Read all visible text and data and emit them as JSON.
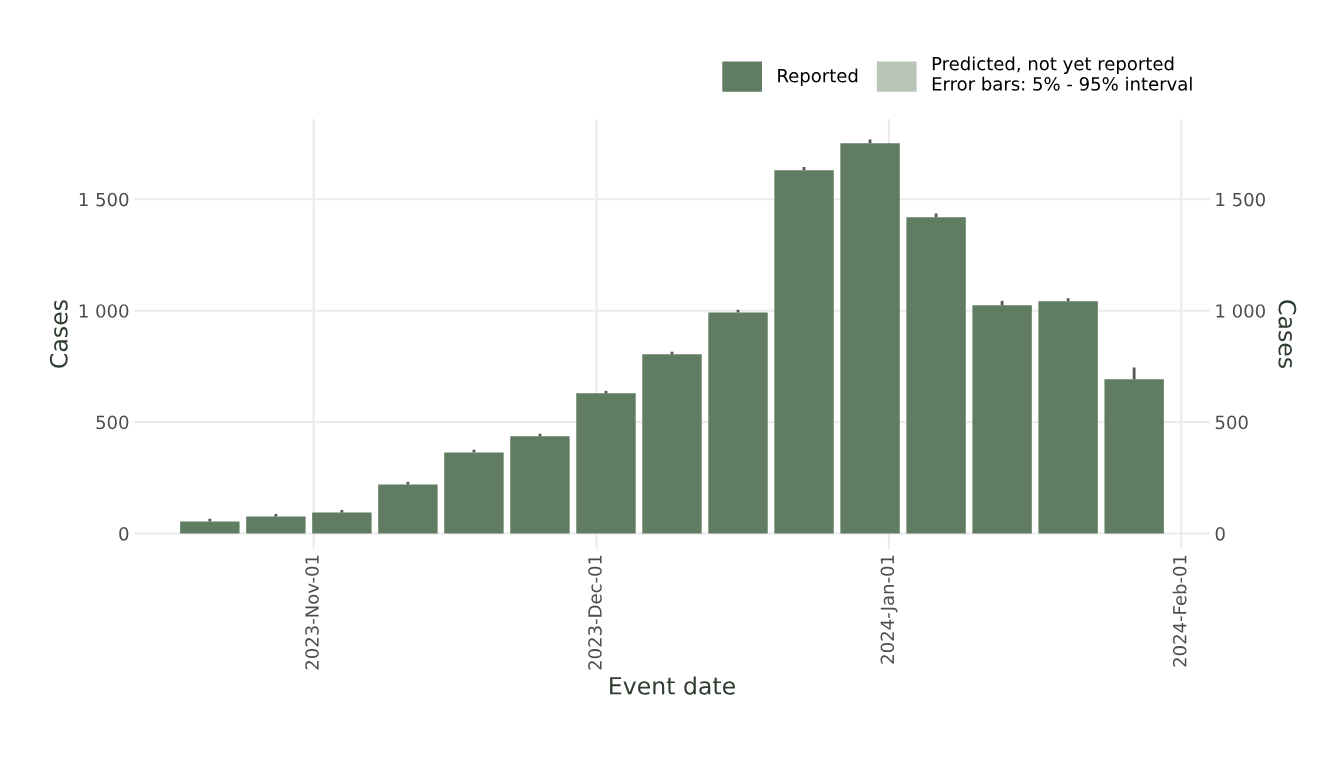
{
  "chart_data": {
    "type": "bar",
    "x": [
      "2023-10-21",
      "2023-10-28",
      "2023-11-04",
      "2023-11-11",
      "2023-11-18",
      "2023-11-25",
      "2023-12-02",
      "2023-12-09",
      "2023-12-16",
      "2023-12-23",
      "2023-12-30",
      "2024-01-06",
      "2024-01-13",
      "2024-01-20",
      "2024-01-27"
    ],
    "series": [
      {
        "name": "Reported",
        "color": "#607d62",
        "values": [
          54,
          76,
          94,
          220,
          364,
          436,
          629,
          804,
          992,
          1630,
          1751,
          1419,
          1024,
          1042,
          692
        ],
        "errors": [
          [
            54,
            66
          ],
          [
            76,
            88
          ],
          [
            94,
            106
          ],
          [
            220,
            232
          ],
          [
            364,
            376
          ],
          [
            436,
            448
          ],
          [
            629,
            640
          ],
          [
            804,
            816
          ],
          [
            992,
            1004
          ],
          [
            1630,
            1645
          ],
          [
            1751,
            1768
          ],
          [
            1419,
            1436
          ],
          [
            1024,
            1044
          ],
          [
            1042,
            1056
          ],
          [
            692,
            745
          ]
        ]
      },
      {
        "name": "Predicted, not yet reported\nError bars: 5% - 95% interval",
        "color": "#b8c6b8",
        "values": [
          null,
          null,
          null,
          null,
          null,
          null,
          null,
          null,
          null,
          null,
          null,
          null,
          null,
          null,
          null
        ]
      }
    ],
    "xlabel": "Event date",
    "ylabel": "Cases",
    "y2label": "Cases",
    "xlim": [
      "2023-10-13",
      "2024-02-04"
    ],
    "xticks": [
      {
        "value": "2023-11-01",
        "label": "2023-Nov-01"
      },
      {
        "value": "2023-12-01",
        "label": "2023-Dec-01"
      },
      {
        "value": "2024-01-01",
        "label": "2024-Jan-01"
      },
      {
        "value": "2024-02-01",
        "label": "2024-Feb-01"
      }
    ],
    "ylim": [
      -70,
      1860
    ],
    "yticks": [
      0,
      500,
      {
        "value": 1000,
        "label": "1 000"
      },
      {
        "value": 1500,
        "label": "1 500"
      }
    ],
    "y2lim": [
      -70,
      1860
    ],
    "y2ticks": [
      0,
      500,
      {
        "value": 1000,
        "label": "1 000"
      },
      {
        "value": 1500,
        "label": "1 500"
      }
    ],
    "grid": true,
    "legend": "top right"
  }
}
